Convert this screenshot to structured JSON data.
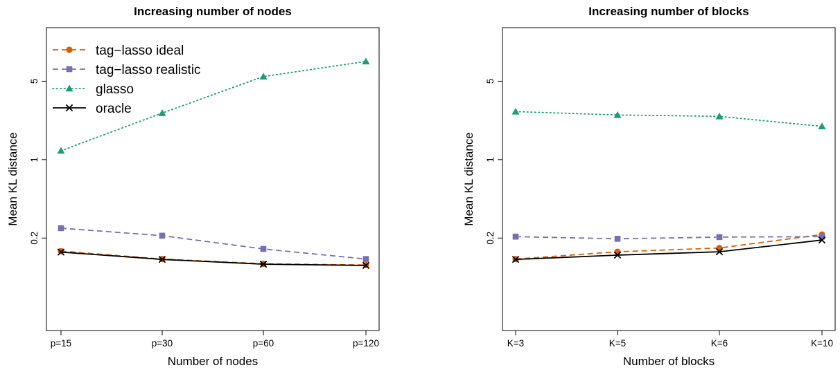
{
  "chart_data": [
    {
      "type": "line",
      "title": "Increasing number of nodes",
      "xlabel": "Number of nodes",
      "ylabel": "Mean KL distance",
      "categories": [
        "p=15",
        "p=30",
        "p=60",
        "p=120"
      ],
      "y_scale": "log",
      "ylim": [
        0.03,
        15
      ],
      "yticks": [
        0.2,
        1,
        5
      ],
      "legend": "top-left",
      "series": [
        {
          "name": "tag−lasso ideal",
          "values": [
            0.153,
            0.13,
            0.118,
            0.115
          ],
          "color": "#D95F02",
          "marker": "circle",
          "line": "dashed"
        },
        {
          "name": "tag−lasso realistic",
          "values": [
            0.245,
            0.21,
            0.16,
            0.13
          ],
          "color": "#7570B3",
          "marker": "square",
          "line": "dashed"
        },
        {
          "name": "glasso",
          "values": [
            1.2,
            2.6,
            5.5,
            7.5
          ],
          "color": "#1B9E77",
          "marker": "triangle",
          "line": "dotted"
        },
        {
          "name": "oracle",
          "values": [
            0.15,
            0.129,
            0.117,
            0.114
          ],
          "color": "#000000",
          "marker": "x",
          "line": "solid"
        }
      ]
    },
    {
      "type": "line",
      "title": "Increasing number of blocks",
      "xlabel": "Number of blocks",
      "ylabel": "Mean KL distance",
      "categories": [
        "K=3",
        "K=5",
        "K=6",
        "K=10"
      ],
      "y_scale": "log",
      "ylim": [
        0.03,
        15
      ],
      "yticks": [
        0.2,
        1,
        5
      ],
      "series": [
        {
          "name": "tag−lasso ideal",
          "values": [
            0.13,
            0.151,
            0.163,
            0.215
          ],
          "color": "#D95F02",
          "marker": "circle",
          "line": "dashed"
        },
        {
          "name": "tag−lasso realistic",
          "values": [
            0.206,
            0.197,
            0.204,
            0.206
          ],
          "color": "#7570B3",
          "marker": "square",
          "line": "dashed"
        },
        {
          "name": "glasso",
          "values": [
            2.68,
            2.5,
            2.43,
            1.98
          ],
          "color": "#1B9E77",
          "marker": "triangle",
          "line": "dotted"
        },
        {
          "name": "oracle",
          "values": [
            0.129,
            0.141,
            0.151,
            0.192
          ],
          "color": "#000000",
          "marker": "x",
          "line": "solid"
        }
      ]
    }
  ]
}
